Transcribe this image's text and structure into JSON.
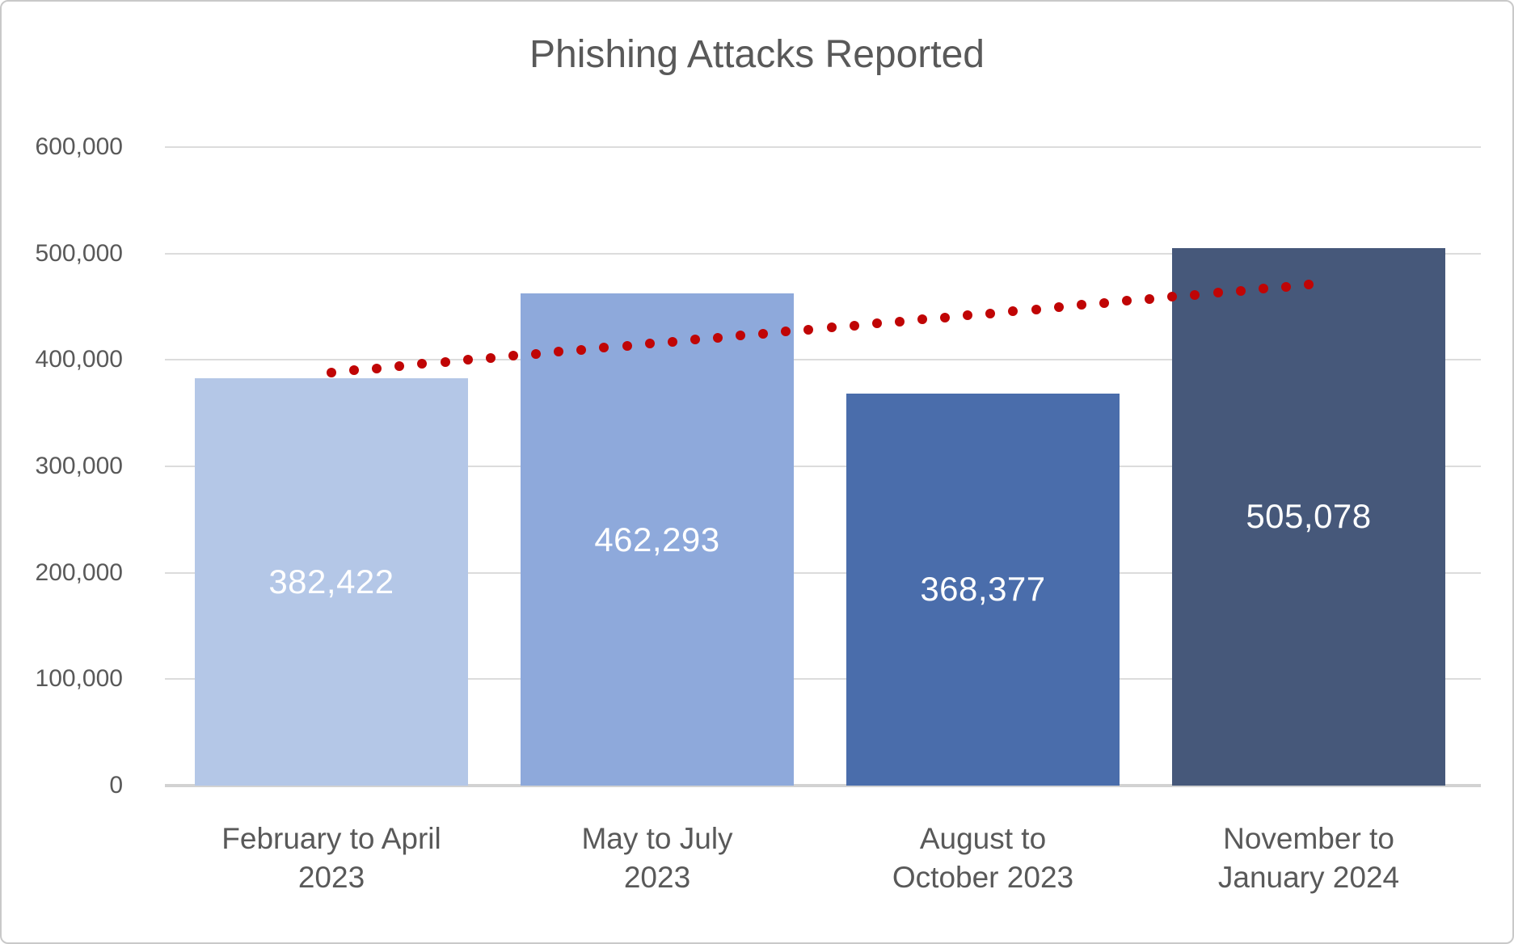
{
  "title": "Phishing Attacks Reported",
  "chart_data": {
    "type": "bar",
    "title": "Phishing Attacks Reported",
    "categories": [
      "February to April 2023",
      "May to July 2023",
      "August to October 2023",
      "November to January 2024"
    ],
    "categories_lines": [
      [
        "February to April",
        "2023"
      ],
      [
        "May to July",
        "2023"
      ],
      [
        "August to",
        "October 2023"
      ],
      [
        "November to",
        "January 2024"
      ]
    ],
    "values": [
      382422,
      462293,
      368377,
      505078
    ],
    "value_labels": [
      "382,422",
      "462,293",
      "368,377",
      "505,078"
    ],
    "bar_colors": [
      "#b4c7e7",
      "#8ea9db",
      "#4a6dab",
      "#46587a"
    ],
    "value_label_color": "#ffffff",
    "xlabel": "",
    "ylabel": "",
    "ylim": [
      0,
      600000
    ],
    "ytick_step": 100000,
    "ytick_labels": [
      "0",
      "100,000",
      "200,000",
      "300,000",
      "400,000",
      "500,000",
      "600,000"
    ],
    "grid": true,
    "gridline_color": "#dcdcdc",
    "axis_text_color": "#595959",
    "legend": "none",
    "background": "#ffffff",
    "trendline": {
      "type": "linear",
      "style": "dotted",
      "color": "#c00505",
      "start_value": 388435,
      "end_value": 470650,
      "dot_count": 44
    }
  }
}
